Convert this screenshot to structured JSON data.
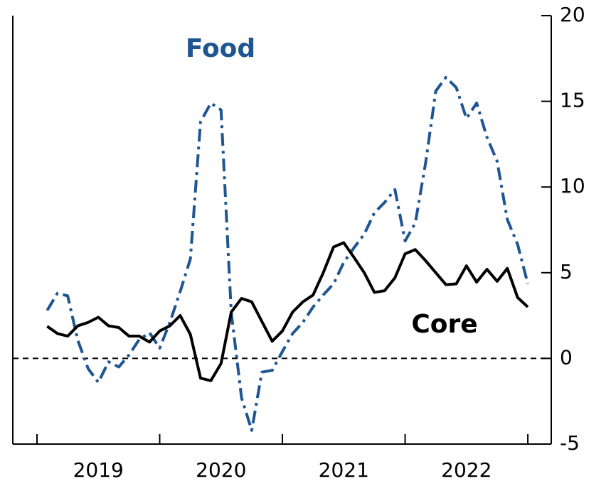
{
  "chart_data": {
    "type": "line",
    "x": [
      2019.083,
      2019.167,
      2019.25,
      2019.333,
      2019.417,
      2019.5,
      2019.583,
      2019.667,
      2019.75,
      2019.833,
      2019.917,
      2020,
      2020.083,
      2020.167,
      2020.25,
      2020.333,
      2020.417,
      2020.5,
      2020.583,
      2020.667,
      2020.75,
      2020.833,
      2020.917,
      2021,
      2021.083,
      2021.167,
      2021.25,
      2021.333,
      2021.417,
      2021.5,
      2021.583,
      2021.667,
      2021.75,
      2021.833,
      2021.917,
      2022,
      2022.083,
      2022.167,
      2022.25,
      2022.333,
      2022.417,
      2022.5,
      2022.583,
      2022.667,
      2022.75,
      2022.833,
      2022.917,
      2023
    ],
    "series": [
      {
        "name": "Food",
        "color": "#1f5591",
        "dash": "dashdot",
        "values": [
          2.8,
          3.8,
          3.65,
          1.05,
          -0.6,
          -1.4,
          -0.2,
          -0.5,
          0.2,
          1.1,
          1.5,
          0.6,
          2.1,
          3.9,
          5.8,
          13.8,
          14.9,
          14.5,
          2.7,
          -2.3,
          -4.2,
          -0.8,
          -0.7,
          0.4,
          1.45,
          2.1,
          3.0,
          3.7,
          4.35,
          5.6,
          6.45,
          7.25,
          8.5,
          9.1,
          9.85,
          6.85,
          7.9,
          11.4,
          15.6,
          16.4,
          15.8,
          14.0,
          14.9,
          12.9,
          11.5,
          8.1,
          6.65,
          4.35
        ]
      },
      {
        "name": "Core",
        "color": "#000000",
        "dash": "solid",
        "values": [
          1.87,
          1.45,
          1.3,
          1.9,
          2.1,
          2.4,
          1.9,
          1.8,
          1.3,
          1.3,
          0.95,
          1.6,
          1.9,
          2.5,
          1.4,
          -1.15,
          -1.3,
          -0.3,
          2.7,
          3.5,
          3.3,
          2.15,
          1.0,
          1.6,
          2.7,
          3.3,
          3.7,
          5.0,
          6.5,
          6.75,
          5.9,
          5.0,
          3.85,
          3.95,
          4.7,
          6.1,
          6.35,
          5.7,
          5.0,
          4.3,
          4.35,
          5.4,
          4.45,
          5.2,
          4.5,
          5.25,
          3.55,
          3.0
        ]
      }
    ],
    "xlim": [
      2018.803,
      2023.191
    ],
    "xticks": [
      2019,
      2020,
      2021,
      2022,
      2023
    ],
    "xlabels": [
      {
        "value": 2019.5,
        "label": "2019"
      },
      {
        "value": 2020.5,
        "label": "2020"
      },
      {
        "value": 2021.5,
        "label": "2021"
      },
      {
        "value": 2022.5,
        "label": "2022"
      }
    ],
    "ylim": [
      -5,
      20
    ],
    "yticks": [
      -5,
      0,
      5,
      10,
      15,
      20
    ],
    "y_axis_side": "right",
    "hline": 0
  }
}
